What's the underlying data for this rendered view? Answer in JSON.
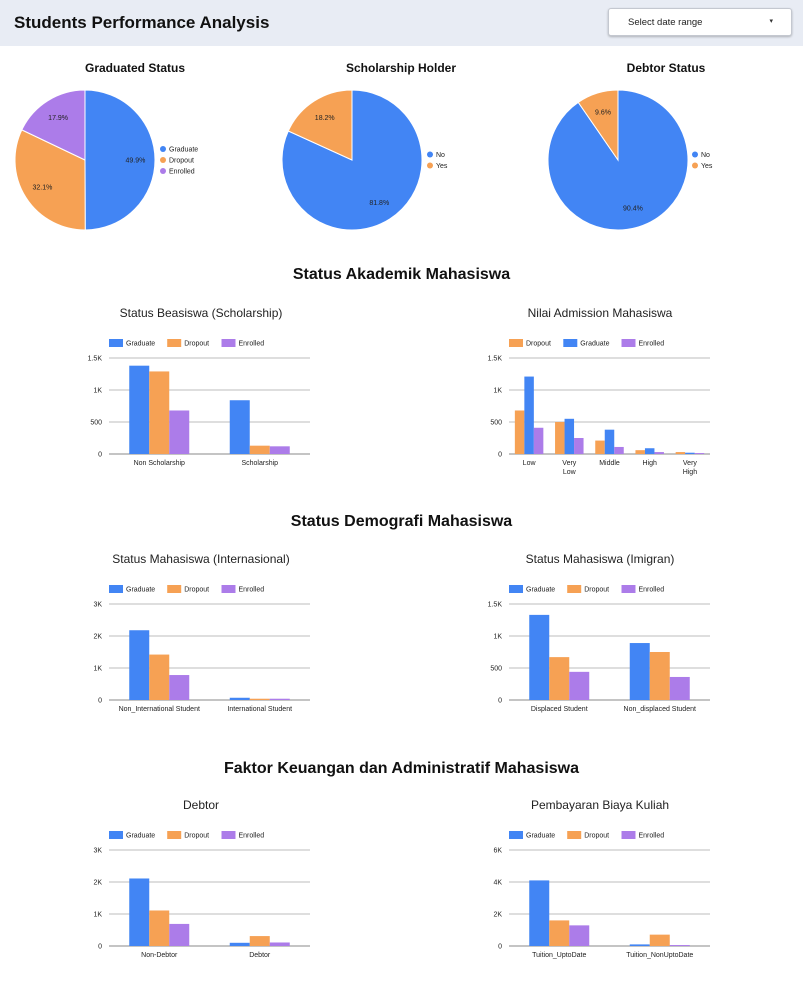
{
  "header": {
    "title": "Students Performance Analysis",
    "date_range_label": "Select date range",
    "date_range_caret": "▾"
  },
  "sections": {
    "akademik": "Status Akademik Mahasiswa",
    "demografi": "Status Demografi Mahasiswa",
    "keuangan": "Faktor Keuangan dan Administratif Mahasiswa"
  },
  "colors": {
    "graduate": "#4285f4",
    "dropout": "#f6a154",
    "enrolled": "#ac7ce9",
    "no": "#4285f4",
    "yes": "#f6a154",
    "gridline": "#bdbdbd",
    "text": "#222222"
  },
  "chart_data": [
    {
      "id": "graduated",
      "type": "pie",
      "title": "Graduated Status",
      "labels": [
        "Graduate",
        "Dropout",
        "Enrolled"
      ],
      "values": [
        49.9,
        32.1,
        17.9
      ],
      "value_labels": [
        "49.9%",
        "32.1%",
        "17.9%"
      ],
      "legend": "right"
    },
    {
      "id": "scholarship",
      "type": "pie",
      "title": "Scholarship Holder",
      "labels": [
        "No",
        "Yes"
      ],
      "values": [
        81.8,
        18.2
      ],
      "value_labels": [
        "81.8%",
        "18.2%"
      ],
      "legend": "right"
    },
    {
      "id": "debtor_status",
      "type": "pie",
      "title": "Debtor Status",
      "labels": [
        "No",
        "Yes"
      ],
      "values": [
        90.4,
        9.6
      ],
      "value_labels": [
        "90.4%",
        "9.6%"
      ],
      "legend": "right"
    },
    {
      "id": "beasiswa",
      "type": "bar",
      "title": "Status Beasiswa (Scholarship)",
      "categories": [
        "Non Scholarship",
        "Scholarship"
      ],
      "series": [
        {
          "name": "Graduate",
          "values": [
            1380,
            840
          ]
        },
        {
          "name": "Dropout",
          "values": [
            1290,
            130
          ]
        },
        {
          "name": "Enrolled",
          "values": [
            680,
            120
          ]
        }
      ],
      "ylim": [
        0,
        1500
      ],
      "yticks": [
        0,
        500,
        1000,
        1500
      ],
      "ytick_labels": [
        "0",
        "500",
        "1K",
        "1.5K"
      ],
      "legend": "top-left",
      "grid": true
    },
    {
      "id": "admission",
      "type": "bar",
      "title": "Nilai Admission Mahasiswa",
      "categories": [
        "Low",
        "Very Low",
        "Middle",
        "High",
        "Very High"
      ],
      "series": [
        {
          "name": "Dropout",
          "values": [
            680,
            500,
            210,
            60,
            30
          ]
        },
        {
          "name": "Graduate",
          "values": [
            1210,
            550,
            380,
            90,
            20
          ]
        },
        {
          "name": "Enrolled",
          "values": [
            410,
            250,
            110,
            30,
            15
          ]
        }
      ],
      "ylim": [
        0,
        1500
      ],
      "yticks": [
        0,
        500,
        1000,
        1500
      ],
      "ytick_labels": [
        "0",
        "500",
        "1K",
        "1.5K"
      ],
      "legend": "top-left",
      "grid": true
    },
    {
      "id": "internasional",
      "type": "bar",
      "title": "Status Mahasiswa (Internasional)",
      "categories": [
        "Non_International Student",
        "International Student"
      ],
      "series": [
        {
          "name": "Graduate",
          "values": [
            2180,
            70
          ]
        },
        {
          "name": "Dropout",
          "values": [
            1420,
            40
          ]
        },
        {
          "name": "Enrolled",
          "values": [
            780,
            40
          ]
        }
      ],
      "ylim": [
        0,
        3000
      ],
      "yticks": [
        0,
        1000,
        2000,
        3000
      ],
      "ytick_labels": [
        "0",
        "1K",
        "2K",
        "3K"
      ],
      "legend": "top-left",
      "grid": true
    },
    {
      "id": "imigran",
      "type": "bar",
      "title": "Status Mahasiswa (Imigran)",
      "categories": [
        "Displaced Student",
        "Non_displaced Student"
      ],
      "series": [
        {
          "name": "Graduate",
          "values": [
            1330,
            890
          ]
        },
        {
          "name": "Dropout",
          "values": [
            670,
            750
          ]
        },
        {
          "name": "Enrolled",
          "values": [
            440,
            360
          ]
        }
      ],
      "ylim": [
        0,
        1500
      ],
      "yticks": [
        0,
        500,
        1000,
        1500
      ],
      "ytick_labels": [
        "0",
        "500",
        "1K",
        "1.5K"
      ],
      "legend": "top-left",
      "grid": true
    },
    {
      "id": "debtor",
      "type": "bar",
      "title": "Debtor",
      "categories": [
        "Non-Debtor",
        "Debtor"
      ],
      "series": [
        {
          "name": "Graduate",
          "values": [
            2110,
            100
          ]
        },
        {
          "name": "Dropout",
          "values": [
            1110,
            310
          ]
        },
        {
          "name": "Enrolled",
          "values": [
            690,
            110
          ]
        }
      ],
      "ylim": [
        0,
        3000
      ],
      "yticks": [
        0,
        1000,
        2000,
        3000
      ],
      "ytick_labels": [
        "0",
        "1K",
        "2K",
        "3K"
      ],
      "legend": "top-left",
      "grid": true
    },
    {
      "id": "biaya",
      "type": "bar",
      "title": "Pembayaran Biaya Kuliah",
      "categories": [
        "Tuition_UptoDate",
        "Tuition_NonUptoDate"
      ],
      "series": [
        {
          "name": "Graduate",
          "values": [
            4100,
            100
          ]
        },
        {
          "name": "Dropout",
          "values": [
            1600,
            710
          ]
        },
        {
          "name": "Enrolled",
          "values": [
            1290,
            60
          ]
        }
      ],
      "ylim": [
        0,
        6000
      ],
      "yticks": [
        0,
        2000,
        4000,
        6000
      ],
      "ytick_labels": [
        "0",
        "2K",
        "4K",
        "6K"
      ],
      "legend": "top-left",
      "grid": true
    }
  ]
}
